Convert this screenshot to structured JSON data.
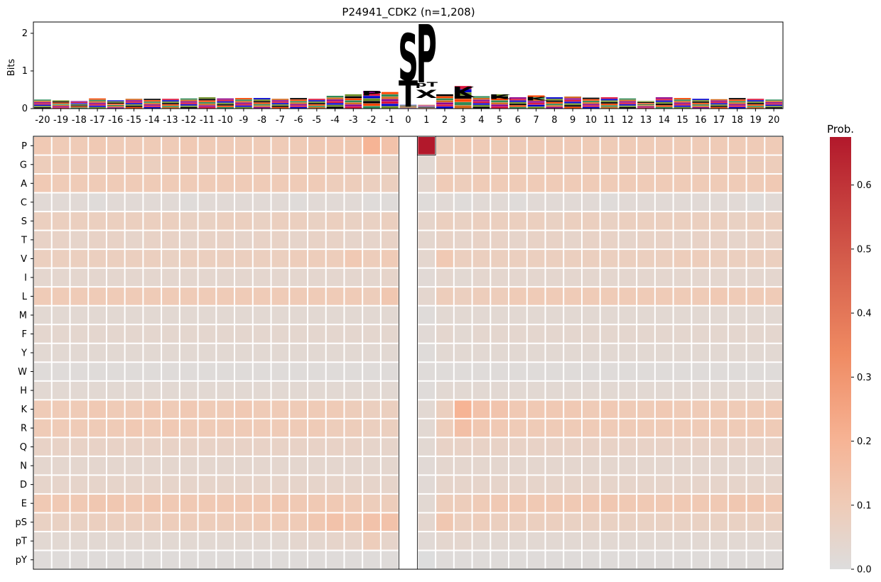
{
  "chart_data": [
    {
      "type": "logo",
      "title": "P24941_CDK2 (n=1,208)",
      "ylabel": "Bits",
      "ylim": [
        0,
        2.3
      ],
      "yticks": [
        0,
        1,
        2
      ],
      "positions": [
        -20,
        -19,
        -18,
        -17,
        -16,
        -15,
        -14,
        -13,
        -12,
        -11,
        -10,
        -9,
        -8,
        -7,
        -6,
        -5,
        -4,
        -3,
        -2,
        -1,
        0,
        1,
        2,
        3,
        4,
        5,
        6,
        7,
        8,
        9,
        10,
        11,
        12,
        13,
        14,
        15,
        16,
        17,
        18,
        19,
        20
      ],
      "background_total_bits": [
        0.24,
        0.22,
        0.2,
        0.27,
        0.22,
        0.26,
        0.26,
        0.26,
        0.27,
        0.3,
        0.27,
        0.28,
        0.28,
        0.26,
        0.28,
        0.26,
        0.34,
        0.38,
        0.47,
        0.44,
        2.25,
        2.2,
        0.38,
        0.6,
        0.33,
        0.38,
        0.3,
        0.35,
        0.3,
        0.32,
        0.29,
        0.3,
        0.27,
        0.2,
        0.3,
        0.28,
        0.26,
        0.25,
        0.28,
        0.26,
        0.24
      ],
      "major_letters": [
        {
          "position": 0,
          "letter": "S",
          "bits": 1.25,
          "base": 0.75,
          "color": "#8b008b"
        },
        {
          "position": 0,
          "letter": "T",
          "bits": 0.7,
          "base": 0.05,
          "color": "#8b008b"
        },
        {
          "position": 1,
          "letter": "P",
          "bits": 1.55,
          "base": 0.7,
          "color": "#000000"
        },
        {
          "position": 1,
          "letter": "pT",
          "bits": 0.12,
          "base": 0.58,
          "color": "#dc143c"
        },
        {
          "position": 1,
          "letter": "X",
          "bits": 0.22,
          "base": 0.28,
          "color": "#6b8e23"
        },
        {
          "position": 3,
          "letter": "K",
          "bits": 0.28,
          "base": 0.3,
          "color": "#0000cd"
        },
        {
          "position": -2,
          "letter": "P",
          "bits": 0.12,
          "base": 0.35,
          "color": "#000000"
        },
        {
          "position": 5,
          "letter": "K",
          "bits": 0.12,
          "base": 0.25,
          "color": "#0000cd"
        },
        {
          "position": 7,
          "letter": "K",
          "bits": 0.1,
          "base": 0.22,
          "color": "#0000cd"
        }
      ]
    },
    {
      "type": "heatmap",
      "colorbar_label": "Prob.",
      "colorbar_ticks": [
        "0.0",
        "0.1",
        "0.2",
        "0.3",
        "0.4",
        "0.5",
        "0.6"
      ],
      "vmin": 0.0,
      "vmax": 0.675,
      "rows": [
        "P",
        "G",
        "A",
        "C",
        "S",
        "T",
        "V",
        "I",
        "L",
        "M",
        "F",
        "Y",
        "W",
        "H",
        "K",
        "R",
        "Q",
        "N",
        "D",
        "E",
        "pS",
        "pT",
        "pY"
      ],
      "columns": [
        -20,
        -19,
        -18,
        -17,
        -16,
        -15,
        -14,
        -13,
        -12,
        -11,
        -10,
        -9,
        -8,
        -7,
        -6,
        -5,
        -4,
        -3,
        -2,
        -1,
        0,
        1,
        2,
        3,
        4,
        5,
        6,
        7,
        8,
        9,
        10,
        11,
        12,
        13,
        14,
        15,
        16,
        17,
        18,
        19,
        20
      ],
      "values": [
        [
          0.11,
          0.1,
          0.1,
          0.11,
          0.1,
          0.1,
          0.1,
          0.1,
          0.11,
          0.1,
          0.1,
          0.1,
          0.1,
          0.1,
          0.1,
          0.11,
          0.11,
          0.12,
          0.2,
          0.14,
          null,
          0.675,
          0.1,
          0.11,
          0.1,
          0.1,
          0.1,
          0.1,
          0.1,
          0.1,
          0.1,
          0.1,
          0.1,
          0.1,
          0.1,
          0.1,
          0.1,
          0.1,
          0.1,
          0.1,
          0.1
        ],
        [
          0.09,
          0.09,
          0.09,
          0.08,
          0.09,
          0.09,
          0.08,
          0.09,
          0.09,
          0.08,
          0.09,
          0.09,
          0.09,
          0.08,
          0.09,
          0.09,
          0.09,
          0.08,
          0.07,
          0.07,
          null,
          0.03,
          0.08,
          0.07,
          0.08,
          0.09,
          0.09,
          0.08,
          0.09,
          0.08,
          0.09,
          0.09,
          0.09,
          0.08,
          0.09,
          0.09,
          0.08,
          0.09,
          0.09,
          0.09,
          0.09
        ],
        [
          0.11,
          0.1,
          0.1,
          0.1,
          0.1,
          0.1,
          0.1,
          0.1,
          0.1,
          0.1,
          0.1,
          0.1,
          0.1,
          0.1,
          0.1,
          0.1,
          0.09,
          0.09,
          0.08,
          0.08,
          null,
          0.04,
          0.1,
          0.09,
          0.1,
          0.1,
          0.1,
          0.1,
          0.1,
          0.1,
          0.1,
          0.1,
          0.1,
          0.1,
          0.1,
          0.1,
          0.1,
          0.1,
          0.1,
          0.1,
          0.11
        ],
        [
          0.02,
          0.02,
          0.02,
          0.01,
          0.02,
          0.02,
          0.02,
          0.02,
          0.01,
          0.02,
          0.02,
          0.02,
          0.02,
          0.02,
          0.01,
          0.02,
          0.02,
          0.02,
          0.01,
          0.01,
          null,
          0.01,
          0.02,
          0.01,
          0.02,
          0.02,
          0.01,
          0.02,
          0.02,
          0.02,
          0.02,
          0.01,
          0.02,
          0.02,
          0.02,
          0.02,
          0.02,
          0.02,
          0.02,
          0.01,
          0.02
        ],
        [
          0.08,
          0.08,
          0.08,
          0.08,
          0.08,
          0.08,
          0.08,
          0.08,
          0.07,
          0.07,
          0.08,
          0.08,
          0.07,
          0.08,
          0.08,
          0.07,
          0.08,
          0.07,
          0.07,
          0.08,
          null,
          0.05,
          0.08,
          0.07,
          0.08,
          0.08,
          0.08,
          0.08,
          0.07,
          0.08,
          0.08,
          0.07,
          0.08,
          0.08,
          0.08,
          0.08,
          0.08,
          0.08,
          0.07,
          0.08,
          0.08
        ],
        [
          0.06,
          0.06,
          0.05,
          0.06,
          0.06,
          0.05,
          0.06,
          0.06,
          0.05,
          0.06,
          0.06,
          0.05,
          0.06,
          0.06,
          0.05,
          0.06,
          0.06,
          0.05,
          0.05,
          0.06,
          null,
          0.04,
          0.06,
          0.05,
          0.06,
          0.06,
          0.05,
          0.06,
          0.06,
          0.05,
          0.06,
          0.06,
          0.05,
          0.06,
          0.06,
          0.05,
          0.06,
          0.06,
          0.05,
          0.06,
          0.06
        ],
        [
          0.08,
          0.08,
          0.08,
          0.08,
          0.08,
          0.08,
          0.08,
          0.07,
          0.08,
          0.08,
          0.08,
          0.08,
          0.08,
          0.08,
          0.09,
          0.09,
          0.09,
          0.11,
          0.09,
          0.1,
          null,
          0.04,
          0.11,
          0.08,
          0.08,
          0.08,
          0.08,
          0.08,
          0.08,
          0.08,
          0.08,
          0.08,
          0.08,
          0.08,
          0.08,
          0.09,
          0.09,
          0.08,
          0.08,
          0.08,
          0.08
        ],
        [
          0.04,
          0.04,
          0.04,
          0.04,
          0.04,
          0.04,
          0.04,
          0.04,
          0.04,
          0.04,
          0.04,
          0.04,
          0.04,
          0.04,
          0.04,
          0.04,
          0.04,
          0.04,
          0.04,
          0.05,
          null,
          0.02,
          0.04,
          0.03,
          0.04,
          0.04,
          0.04,
          0.04,
          0.04,
          0.04,
          0.04,
          0.04,
          0.04,
          0.04,
          0.04,
          0.04,
          0.04,
          0.04,
          0.04,
          0.04,
          0.04
        ],
        [
          0.1,
          0.1,
          0.1,
          0.1,
          0.1,
          0.1,
          0.1,
          0.1,
          0.1,
          0.1,
          0.1,
          0.1,
          0.1,
          0.1,
          0.1,
          0.1,
          0.1,
          0.1,
          0.09,
          0.12,
          null,
          0.04,
          0.09,
          0.08,
          0.09,
          0.09,
          0.1,
          0.1,
          0.1,
          0.1,
          0.1,
          0.1,
          0.1,
          0.1,
          0.1,
          0.1,
          0.1,
          0.11,
          0.1,
          0.1,
          0.1
        ],
        [
          0.03,
          0.03,
          0.03,
          0.03,
          0.03,
          0.03,
          0.03,
          0.03,
          0.03,
          0.03,
          0.03,
          0.03,
          0.03,
          0.03,
          0.03,
          0.03,
          0.03,
          0.03,
          0.03,
          0.03,
          null,
          0.01,
          0.03,
          0.03,
          0.03,
          0.03,
          0.03,
          0.03,
          0.03,
          0.03,
          0.03,
          0.03,
          0.03,
          0.03,
          0.03,
          0.03,
          0.03,
          0.03,
          0.03,
          0.03,
          0.03
        ],
        [
          0.04,
          0.04,
          0.04,
          0.04,
          0.04,
          0.04,
          0.04,
          0.04,
          0.04,
          0.04,
          0.04,
          0.04,
          0.04,
          0.04,
          0.04,
          0.04,
          0.04,
          0.04,
          0.04,
          0.04,
          null,
          0.02,
          0.04,
          0.03,
          0.04,
          0.04,
          0.04,
          0.04,
          0.04,
          0.04,
          0.04,
          0.04,
          0.04,
          0.04,
          0.04,
          0.04,
          0.04,
          0.04,
          0.04,
          0.04,
          0.04
        ],
        [
          0.03,
          0.03,
          0.03,
          0.03,
          0.03,
          0.03,
          0.03,
          0.03,
          0.03,
          0.03,
          0.03,
          0.03,
          0.03,
          0.03,
          0.03,
          0.03,
          0.03,
          0.03,
          0.03,
          0.03,
          null,
          0.01,
          0.03,
          0.03,
          0.03,
          0.03,
          0.03,
          0.03,
          0.03,
          0.03,
          0.03,
          0.03,
          0.03,
          0.03,
          0.03,
          0.03,
          0.03,
          0.03,
          0.03,
          0.03,
          0.03
        ],
        [
          0.01,
          0.01,
          0.01,
          0.01,
          0.01,
          0.01,
          0.01,
          0.01,
          0.01,
          0.01,
          0.01,
          0.01,
          0.01,
          0.01,
          0.01,
          0.01,
          0.01,
          0.01,
          0.01,
          0.01,
          null,
          0.01,
          0.01,
          0.01,
          0.01,
          0.01,
          0.01,
          0.01,
          0.01,
          0.01,
          0.01,
          0.01,
          0.01,
          0.01,
          0.01,
          0.01,
          0.01,
          0.01,
          0.01,
          0.01,
          0.01
        ],
        [
          0.03,
          0.03,
          0.03,
          0.03,
          0.03,
          0.03,
          0.03,
          0.03,
          0.03,
          0.03,
          0.03,
          0.03,
          0.03,
          0.03,
          0.03,
          0.03,
          0.03,
          0.03,
          0.03,
          0.03,
          null,
          0.01,
          0.03,
          0.03,
          0.03,
          0.03,
          0.03,
          0.03,
          0.03,
          0.03,
          0.03,
          0.03,
          0.03,
          0.03,
          0.03,
          0.03,
          0.03,
          0.03,
          0.03,
          0.03,
          0.03
        ],
        [
          0.1,
          0.1,
          0.1,
          0.11,
          0.1,
          0.1,
          0.11,
          0.1,
          0.11,
          0.1,
          0.1,
          0.11,
          0.1,
          0.1,
          0.1,
          0.1,
          0.1,
          0.09,
          0.08,
          0.08,
          null,
          0.03,
          0.08,
          0.2,
          0.14,
          0.13,
          0.11,
          0.11,
          0.11,
          0.11,
          0.1,
          0.11,
          0.1,
          0.1,
          0.11,
          0.1,
          0.1,
          0.1,
          0.1,
          0.1,
          0.11
        ],
        [
          0.1,
          0.1,
          0.1,
          0.1,
          0.1,
          0.11,
          0.1,
          0.11,
          0.1,
          0.1,
          0.1,
          0.1,
          0.1,
          0.1,
          0.1,
          0.1,
          0.09,
          0.09,
          0.08,
          0.08,
          null,
          0.03,
          0.09,
          0.15,
          0.12,
          0.11,
          0.1,
          0.1,
          0.1,
          0.1,
          0.1,
          0.1,
          0.1,
          0.1,
          0.1,
          0.1,
          0.1,
          0.1,
          0.1,
          0.1,
          0.1
        ],
        [
          0.06,
          0.06,
          0.06,
          0.06,
          0.06,
          0.06,
          0.06,
          0.06,
          0.06,
          0.06,
          0.06,
          0.06,
          0.06,
          0.06,
          0.06,
          0.06,
          0.06,
          0.06,
          0.05,
          0.05,
          null,
          0.03,
          0.06,
          0.06,
          0.06,
          0.06,
          0.06,
          0.06,
          0.06,
          0.06,
          0.06,
          0.06,
          0.06,
          0.06,
          0.06,
          0.06,
          0.06,
          0.06,
          0.06,
          0.06,
          0.06
        ],
        [
          0.04,
          0.04,
          0.04,
          0.04,
          0.04,
          0.04,
          0.04,
          0.04,
          0.04,
          0.04,
          0.04,
          0.04,
          0.04,
          0.04,
          0.04,
          0.04,
          0.04,
          0.04,
          0.04,
          0.04,
          null,
          0.02,
          0.04,
          0.04,
          0.04,
          0.04,
          0.04,
          0.04,
          0.04,
          0.04,
          0.04,
          0.04,
          0.04,
          0.04,
          0.04,
          0.04,
          0.04,
          0.04,
          0.04,
          0.04,
          0.04
        ],
        [
          0.05,
          0.05,
          0.05,
          0.05,
          0.05,
          0.05,
          0.05,
          0.05,
          0.05,
          0.05,
          0.05,
          0.05,
          0.05,
          0.05,
          0.05,
          0.05,
          0.05,
          0.05,
          0.05,
          0.05,
          null,
          0.02,
          0.05,
          0.05,
          0.05,
          0.05,
          0.05,
          0.05,
          0.05,
          0.05,
          0.05,
          0.05,
          0.05,
          0.05,
          0.05,
          0.05,
          0.05,
          0.05,
          0.05,
          0.05,
          0.05
        ],
        [
          0.11,
          0.11,
          0.11,
          0.12,
          0.12,
          0.11,
          0.12,
          0.11,
          0.11,
          0.11,
          0.11,
          0.11,
          0.11,
          0.12,
          0.11,
          0.11,
          0.11,
          0.1,
          0.09,
          0.09,
          null,
          0.03,
          0.09,
          0.09,
          0.1,
          0.11,
          0.11,
          0.11,
          0.11,
          0.11,
          0.11,
          0.12,
          0.11,
          0.11,
          0.11,
          0.11,
          0.11,
          0.11,
          0.12,
          0.12,
          0.11
        ],
        [
          0.07,
          0.07,
          0.07,
          0.08,
          0.08,
          0.08,
          0.08,
          0.09,
          0.09,
          0.09,
          0.09,
          0.09,
          0.1,
          0.1,
          0.1,
          0.12,
          0.14,
          0.12,
          0.14,
          0.14,
          null,
          0.04,
          0.12,
          0.08,
          0.09,
          0.08,
          0.08,
          0.08,
          0.08,
          0.07,
          0.07,
          0.07,
          0.07,
          0.07,
          0.07,
          0.07,
          0.07,
          0.07,
          0.07,
          0.07,
          0.07
        ],
        [
          0.03,
          0.03,
          0.03,
          0.03,
          0.03,
          0.03,
          0.03,
          0.03,
          0.03,
          0.03,
          0.03,
          0.03,
          0.03,
          0.03,
          0.04,
          0.04,
          0.05,
          0.05,
          0.09,
          0.05,
          null,
          0.02,
          0.04,
          0.04,
          0.03,
          0.03,
          0.03,
          0.03,
          0.03,
          0.03,
          0.03,
          0.03,
          0.03,
          0.03,
          0.03,
          0.03,
          0.03,
          0.03,
          0.03,
          0.03,
          0.03
        ],
        [
          0.01,
          0.01,
          0.01,
          0.01,
          0.01,
          0.01,
          0.01,
          0.01,
          0.01,
          0.01,
          0.01,
          0.01,
          0.01,
          0.01,
          0.01,
          0.01,
          0.01,
          0.01,
          0.01,
          0.01,
          null,
          0.0,
          0.01,
          0.01,
          0.01,
          0.01,
          0.01,
          0.01,
          0.01,
          0.01,
          0.01,
          0.01,
          0.01,
          0.01,
          0.01,
          0.01,
          0.01,
          0.01,
          0.01,
          0.01,
          0.01
        ]
      ]
    }
  ],
  "colors": {
    "letter_colors": [
      "#000000",
      "#6b8e23",
      "#0000cd",
      "#dc143c",
      "#8b008b",
      "#d2691e",
      "#2e8b57",
      "#ff4500"
    ]
  }
}
